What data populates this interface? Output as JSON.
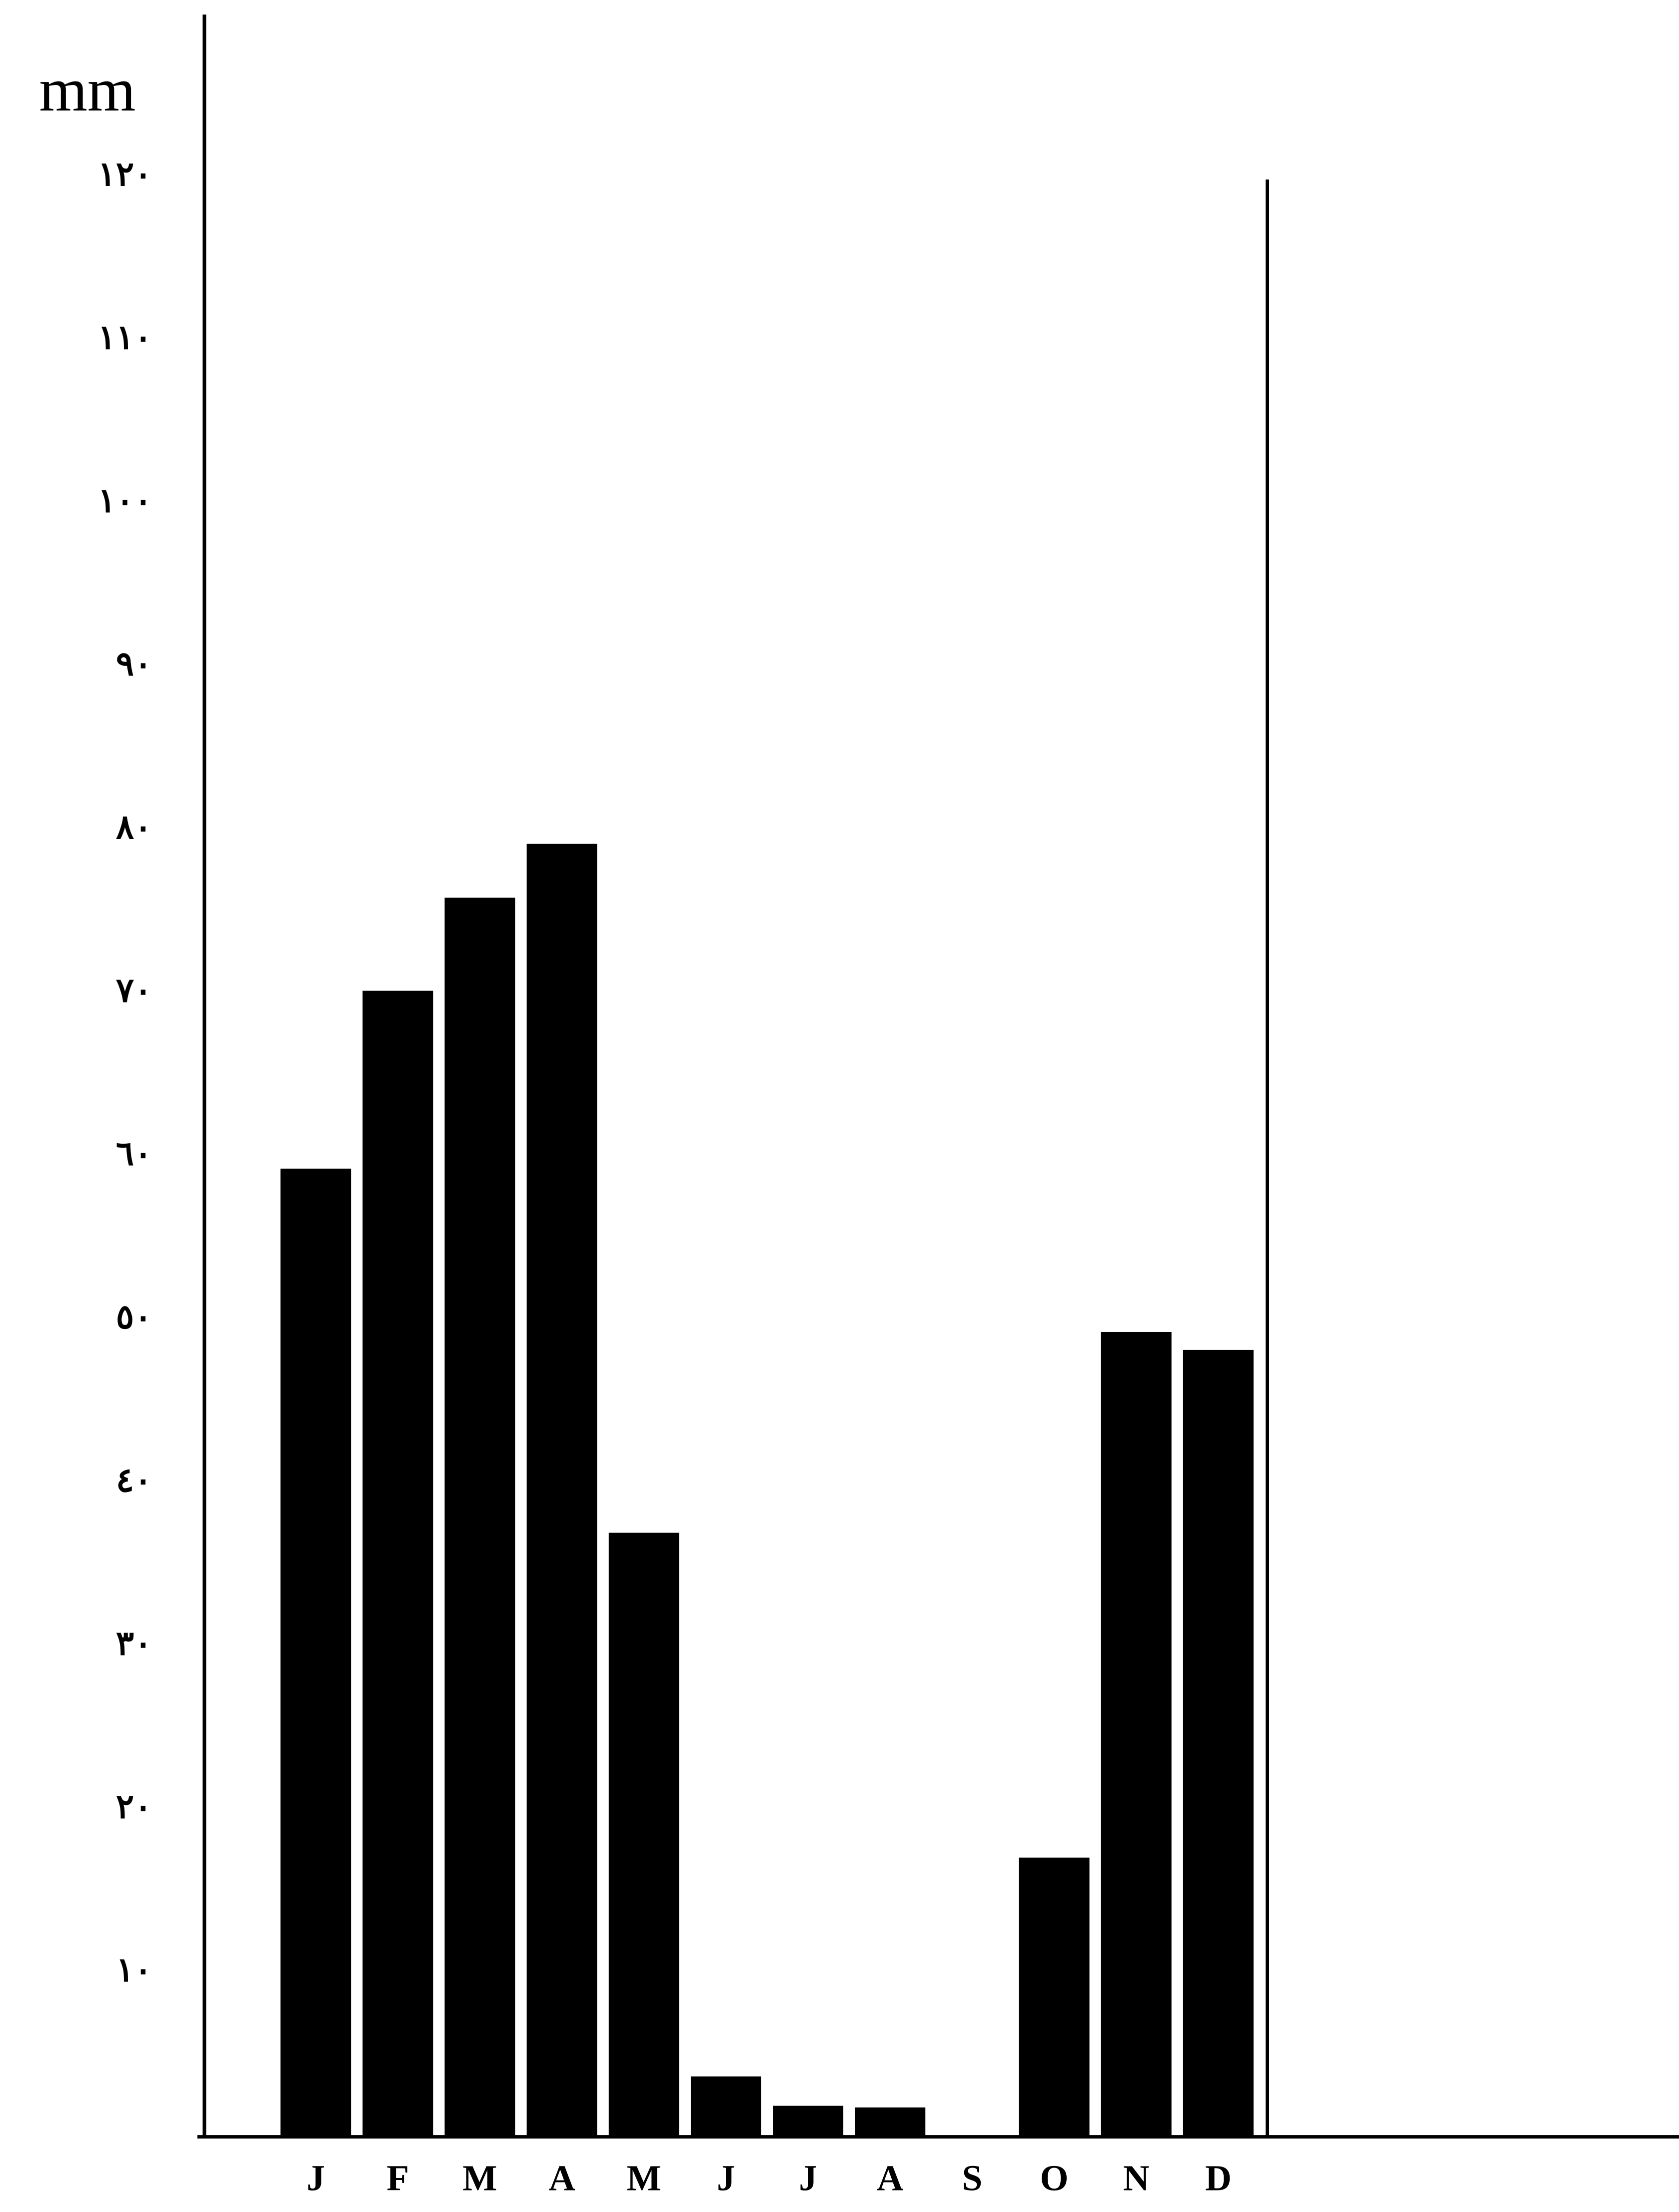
{
  "chart_data": {
    "type": "bar",
    "y_label": "mm",
    "categories": [
      "J",
      "F",
      "M",
      "A",
      "M",
      "J",
      "J",
      "A",
      "S",
      "O",
      "N",
      "D"
    ],
    "values": [
      59.3,
      70.2,
      75.9,
      79.2,
      37.0,
      3.7,
      1.9,
      1.8,
      0,
      17.1,
      49.3,
      48.2
    ],
    "color": "#000000",
    "ylim": [
      0,
      130
    ],
    "yticks": [
      {
        "value": 10,
        "label": "١٠"
      },
      {
        "value": 20,
        "label": "٢٠"
      },
      {
        "value": 30,
        "label": "٣٠"
      },
      {
        "value": 40,
        "label": "٤٠"
      },
      {
        "value": 50,
        "label": "٥٠"
      },
      {
        "value": 60,
        "label": "٦٠"
      },
      {
        "value": 70,
        "label": "٧٠"
      },
      {
        "value": 80,
        "label": "٨٠"
      },
      {
        "value": 90,
        "label": "٩٠"
      },
      {
        "value": 100,
        "label": "١٠٠"
      },
      {
        "value": 110,
        "label": "١١٠"
      },
      {
        "value": 120,
        "label": "١٢٠"
      }
    ],
    "grid": false
  }
}
